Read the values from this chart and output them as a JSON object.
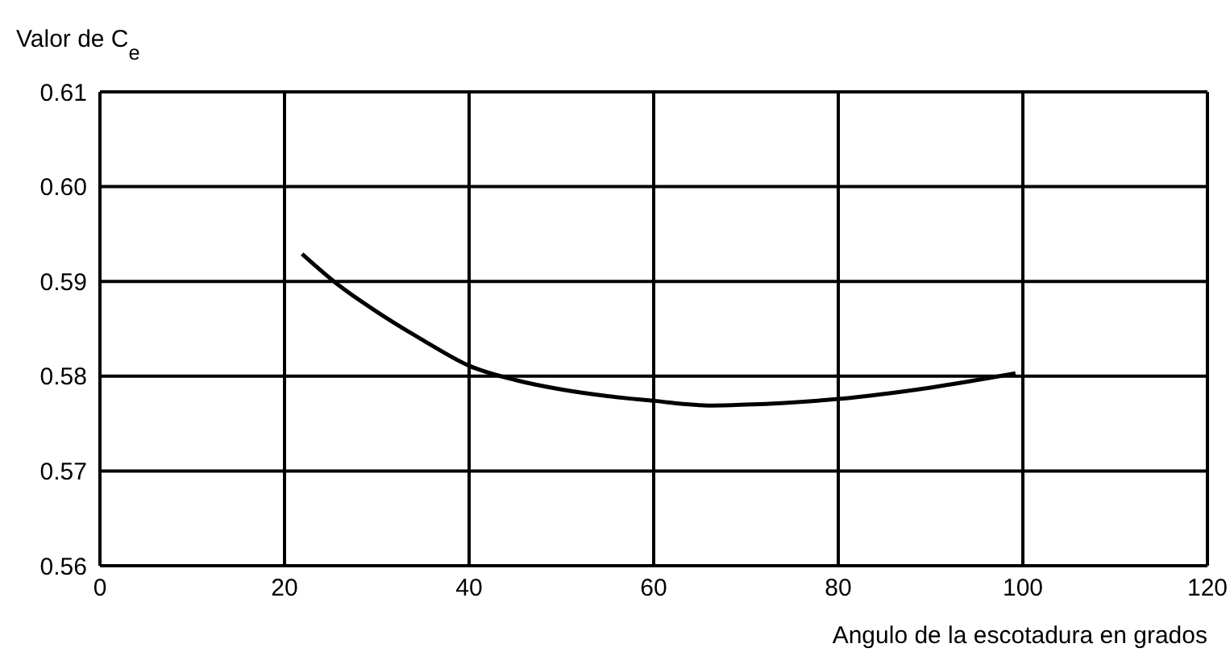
{
  "chart_data": {
    "type": "line",
    "xlabel": "Angulo de la escotadura en grados",
    "ylabel": "Valor de C$_{e}$",
    "x": [
      21.9,
      26,
      30,
      35,
      40,
      45,
      50,
      55,
      60,
      66.3,
      70,
      80,
      90,
      99.2
    ],
    "series": [
      {
        "color": "#000000",
        "values": [
          0.5929,
          0.5895,
          0.5868,
          0.5838,
          0.5811,
          0.5796,
          0.5786,
          0.5779,
          0.5774,
          0.5769,
          0.577,
          0.5776,
          0.5788,
          0.5803
        ]
      }
    ],
    "xlim": [
      0,
      120
    ],
    "xticks": [
      0,
      20,
      40,
      60,
      80,
      100,
      120
    ],
    "ylim": [
      0.56,
      0.61
    ],
    "yticks": [
      0.56,
      0.57,
      0.58,
      0.59,
      {
        "value": 0.6,
        "label": "0.60"
      },
      0.61
    ],
    "grid": true,
    "marker": "none",
    "line_style": "solid",
    "legend": false
  }
}
